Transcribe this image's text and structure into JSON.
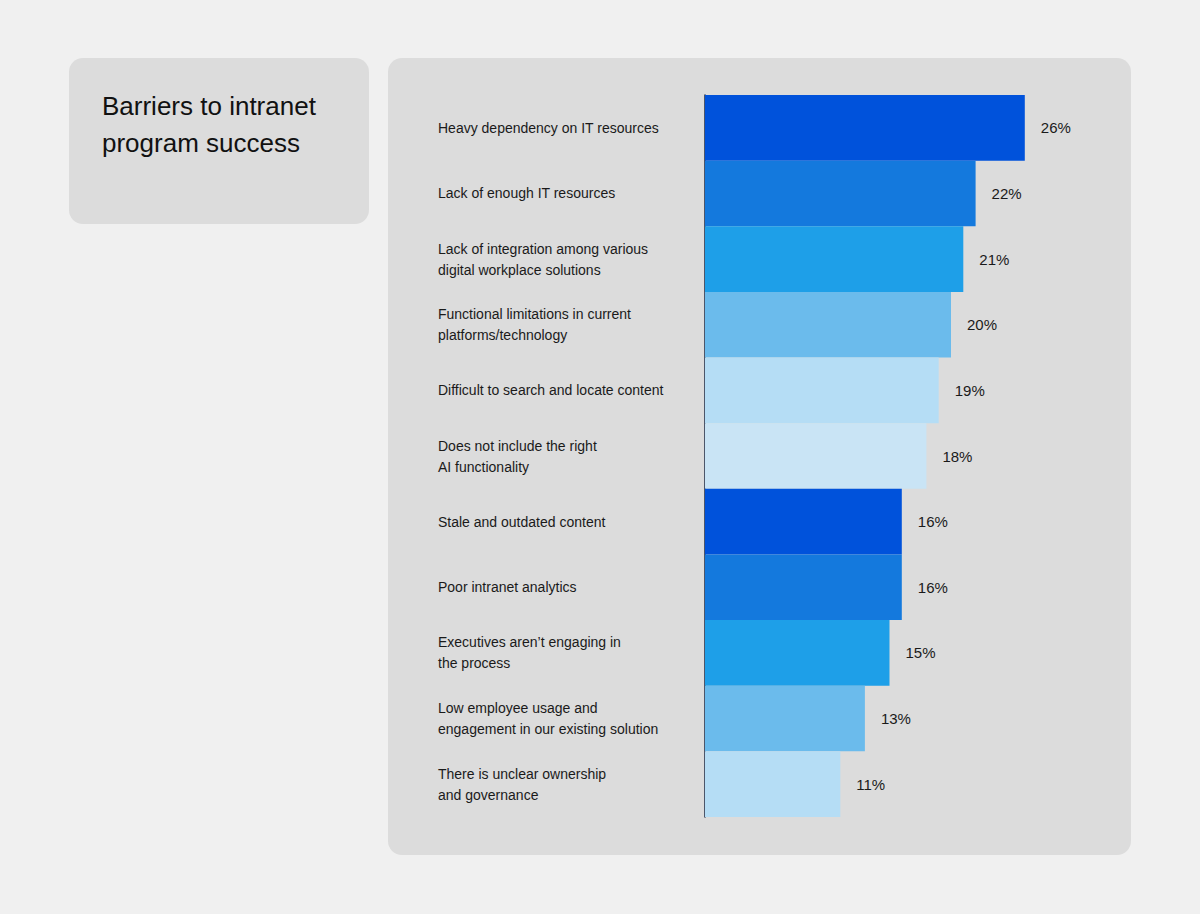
{
  "chart_data": {
    "type": "bar",
    "title": "Barriers to intranet\nprogram success",
    "orientation": "horizontal",
    "categories": [
      "Heavy dependency on IT resources",
      "Lack of enough IT resources",
      "Lack of integration among various\ndigital workplace solutions",
      "Functional limitations in current\nplatforms/technology",
      "Difficult to search and locate content",
      "Does not include the right\nAI functionality",
      "Stale and outdated content",
      "Poor intranet analytics",
      "Executives aren’t engaging in\nthe process",
      "Low employee usage and\nengagement in our existing solution",
      "There is unclear ownership\nand governance"
    ],
    "values": [
      26,
      22,
      21,
      20,
      19,
      18,
      16,
      16,
      15,
      13,
      11
    ],
    "value_labels": [
      "26%",
      "22%",
      "21%",
      "20%",
      "19%",
      "18%",
      "16%",
      "16%",
      "15%",
      "13%",
      "11%"
    ],
    "colors": [
      "#0052db",
      "#1479dd",
      "#1e9fe8",
      "#6bbbec",
      "#b5ddf5",
      "#c9e4f5",
      "#0052db",
      "#1479dd",
      "#1e9fe8",
      "#6bbbec",
      "#b5ddf5"
    ],
    "xlim": [
      0,
      30
    ],
    "data_labels": true,
    "tick_labels": false,
    "grid": false
  }
}
